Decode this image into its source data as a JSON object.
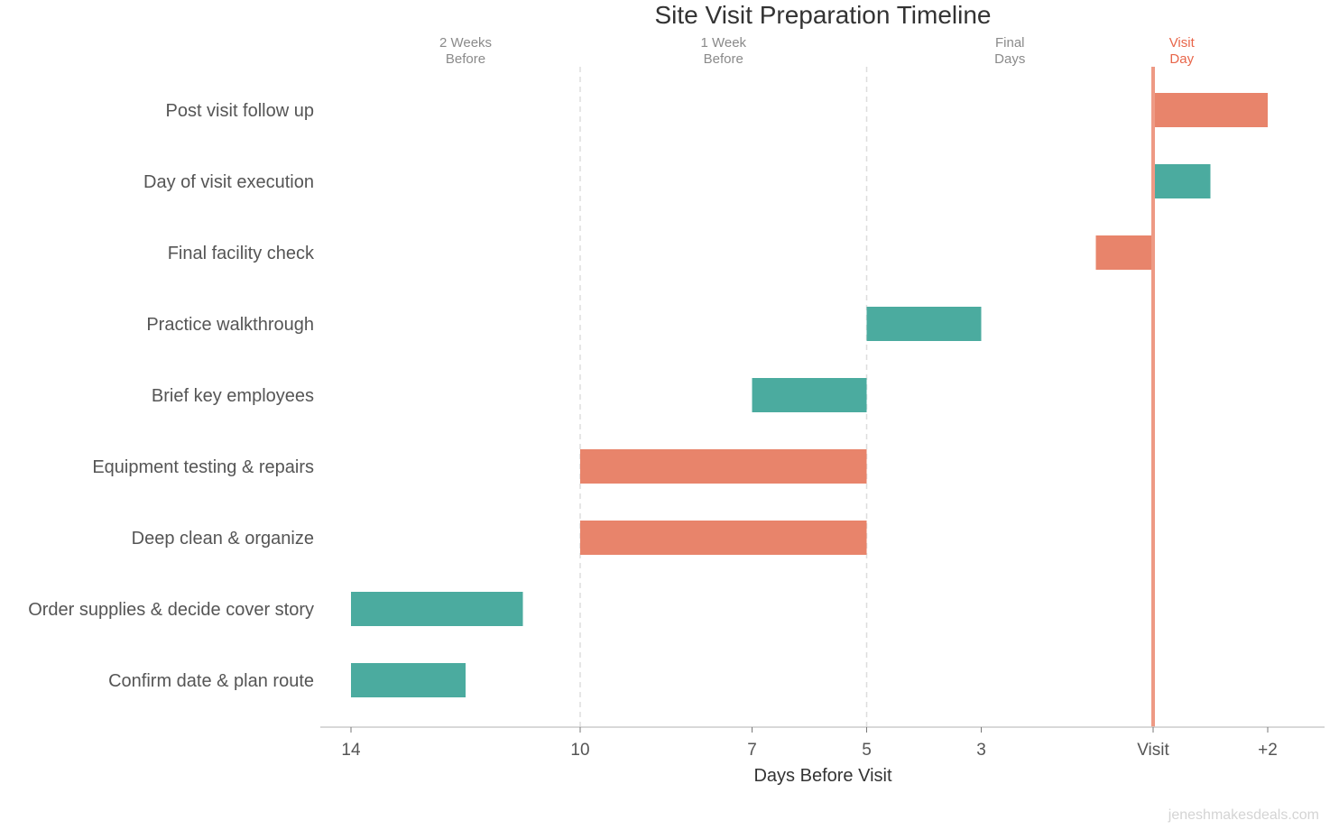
{
  "chart_data": {
    "type": "bar",
    "subtype": "gantt",
    "title": "Site Visit Preparation Timeline",
    "xlabel": "Days Before Visit",
    "ylabel": "",
    "xlim": [
      14.5,
      -2.9
    ],
    "x_reversed": true,
    "grid": false,
    "ticks": [
      {
        "value": 14,
        "label": "14"
      },
      {
        "value": 10,
        "label": "10"
      },
      {
        "value": 7,
        "label": "7"
      },
      {
        "value": 5,
        "label": "5"
      },
      {
        "value": 3,
        "label": "3"
      },
      {
        "value": 0,
        "label": "Visit"
      },
      {
        "value": -2,
        "label": "+2"
      }
    ],
    "phase_dividers": [
      10,
      5
    ],
    "visit_line": 0,
    "phases": [
      {
        "line1": "2 Weeks",
        "line2": "Before",
        "at": 12,
        "color": "#8a8a8a"
      },
      {
        "line1": "1 Week",
        "line2": "Before",
        "at": 7.5,
        "color": "#8a8a8a"
      },
      {
        "line1": "Final",
        "line2": "Days",
        "at": 2.5,
        "color": "#8a8a8a"
      },
      {
        "line1": "Visit",
        "line2": "Day",
        "at": -0.5,
        "color": "#E8664A"
      }
    ],
    "tasks": [
      {
        "label": "Post visit follow up",
        "start": 0,
        "end": -2,
        "color": "#E8846B"
      },
      {
        "label": "Day of visit execution",
        "start": 0,
        "end": -1,
        "color": "#4BAB9F"
      },
      {
        "label": "Final facility check",
        "start": 1,
        "end": 0,
        "color": "#E8846B"
      },
      {
        "label": "Practice walkthrough",
        "start": 5,
        "end": 3,
        "color": "#4BAB9F"
      },
      {
        "label": "Brief key employees",
        "start": 7,
        "end": 5,
        "color": "#4BAB9F"
      },
      {
        "label": "Equipment testing & repairs",
        "start": 10,
        "end": 5,
        "color": "#E8846B"
      },
      {
        "label": "Deep clean & organize",
        "start": 10,
        "end": 5,
        "color": "#E8846B"
      },
      {
        "label": "Order supplies & decide cover story",
        "start": 14,
        "end": 11,
        "color": "#4BAB9F"
      },
      {
        "label": "Confirm date & plan route",
        "start": 14,
        "end": 12,
        "color": "#4BAB9F"
      }
    ],
    "colors": {
      "visit_line": "#EE9A85",
      "divider": "#dddddd",
      "axis": "#cccccc"
    }
  },
  "watermark": "jeneshmakesdeals.com"
}
